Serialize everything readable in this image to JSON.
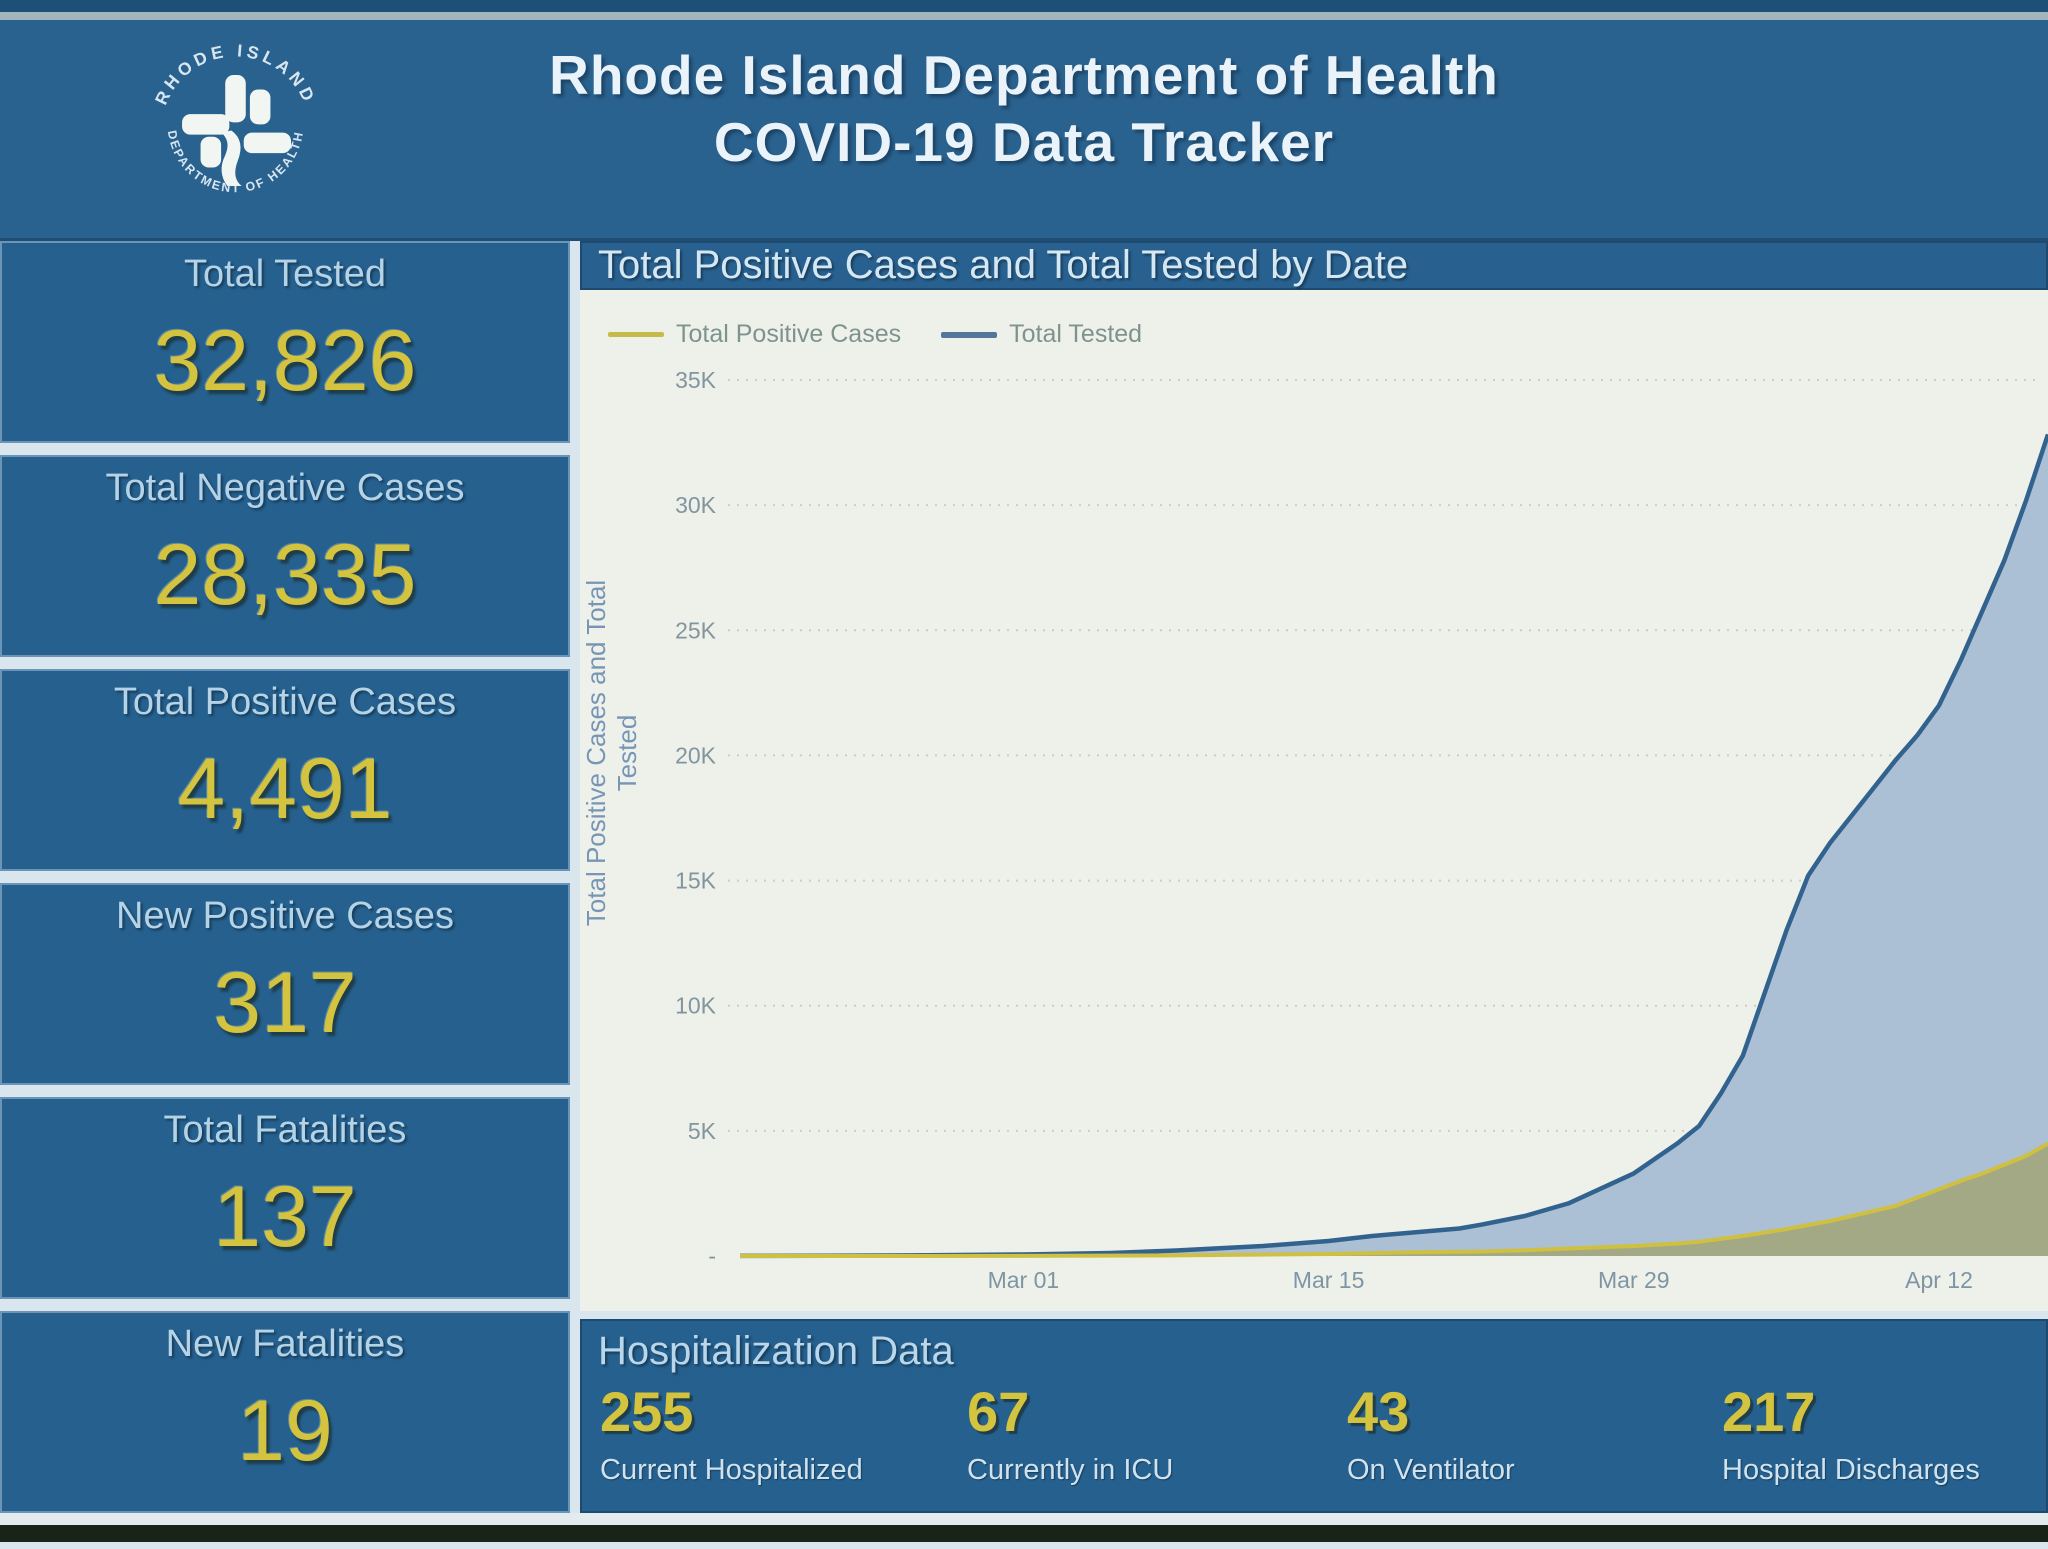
{
  "header": {
    "title_line1": "Rhode Island Department of Health",
    "title_line2": "COVID-19 Data Tracker",
    "logo": {
      "arc_top_text": "RHODE ISLAND",
      "arc_bottom_text": "DEPARTMENT OF HEALTH",
      "icon": "health-seal-icon"
    }
  },
  "stats": [
    {
      "label": "Total Tested",
      "value": "32,826"
    },
    {
      "label": "Total Negative Cases",
      "value": "28,335"
    },
    {
      "label": "Total Positive Cases",
      "value": "4,491"
    },
    {
      "label": "New Positive Cases",
      "value": "317"
    },
    {
      "label": "Total Fatalities",
      "value": "137"
    },
    {
      "label": "New Fatalities",
      "value": "19"
    }
  ],
  "chart_data": {
    "type": "line",
    "title": "Total Positive Cases and Total Tested by Date",
    "y_axis_title": "Total Positive Cases and Total Tested",
    "ylim": [
      0,
      35000
    ],
    "grid": "horizontal-dotted",
    "legend_position": "top-left",
    "y_ticks": [
      {
        "label": "35K",
        "value": 35000
      },
      {
        "label": "30K",
        "value": 30000
      },
      {
        "label": "25K",
        "value": 25000
      },
      {
        "label": "20K",
        "value": 20000
      },
      {
        "label": "15K",
        "value": 15000
      },
      {
        "label": "10K",
        "value": 10000
      },
      {
        "label": "5K",
        "value": 5000
      },
      {
        "label": "-",
        "value": 0
      }
    ],
    "x_range_days": [
      0,
      60
    ],
    "x_ticks": [
      {
        "label": "Mar 01",
        "day": 13
      },
      {
        "label": "Mar 15",
        "day": 27
      },
      {
        "label": "Mar 29",
        "day": 41
      },
      {
        "label": "Apr 12",
        "day": 55
      }
    ],
    "series": [
      {
        "name": "Total Positive Cases",
        "color": "#cfc041",
        "fill": "#a3a985",
        "points": [
          [
            0,
            0
          ],
          [
            8,
            0
          ],
          [
            13,
            5
          ],
          [
            20,
            25
          ],
          [
            27,
            80
          ],
          [
            31,
            150
          ],
          [
            34,
            180
          ],
          [
            36,
            230
          ],
          [
            38,
            300
          ],
          [
            41,
            400
          ],
          [
            43,
            500
          ],
          [
            44,
            570
          ],
          [
            46,
            800
          ],
          [
            48,
            1080
          ],
          [
            50,
            1400
          ],
          [
            51,
            1600
          ],
          [
            53,
            2000
          ],
          [
            55,
            2665
          ],
          [
            56,
            3000
          ],
          [
            57,
            3300
          ],
          [
            58,
            3650
          ],
          [
            59,
            4000
          ],
          [
            60,
            4491
          ]
        ]
      },
      {
        "name": "Total Tested",
        "color": "#32628e",
        "fill": "#abc0d4",
        "points": [
          [
            0,
            5
          ],
          [
            4,
            10
          ],
          [
            8,
            25
          ],
          [
            13,
            60
          ],
          [
            17,
            120
          ],
          [
            20,
            220
          ],
          [
            24,
            400
          ],
          [
            27,
            600
          ],
          [
            29,
            800
          ],
          [
            31,
            950
          ],
          [
            33,
            1100
          ],
          [
            34,
            1250
          ],
          [
            36,
            1600
          ],
          [
            38,
            2100
          ],
          [
            40,
            2900
          ],
          [
            41,
            3300
          ],
          [
            42,
            3900
          ],
          [
            43,
            4500
          ],
          [
            44,
            5200
          ],
          [
            45,
            6500
          ],
          [
            46,
            8000
          ],
          [
            47,
            10500
          ],
          [
            48,
            13000
          ],
          [
            49,
            15200
          ],
          [
            50,
            16500
          ],
          [
            51,
            17600
          ],
          [
            52,
            18700
          ],
          [
            53,
            19800
          ],
          [
            54,
            20800
          ],
          [
            55,
            22000
          ],
          [
            56,
            23800
          ],
          [
            57,
            25800
          ],
          [
            58,
            27800
          ],
          [
            59,
            30200
          ],
          [
            60,
            32826
          ]
        ]
      }
    ]
  },
  "hospitalization": {
    "title": "Hospitalization Data",
    "items": [
      {
        "value": "255",
        "label": "Current Hospitalized"
      },
      {
        "value": "67",
        "label": "Currently in ICU"
      },
      {
        "value": "43",
        "label": "On Ventilator"
      },
      {
        "value": "217",
        "label": "Hospital Discharges"
      }
    ]
  },
  "colors": {
    "header_blue": "#2a628f",
    "card_blue": "#25608e",
    "accent_yellow": "#d3c33e",
    "label_blue": "#b5d3e6",
    "chart_bg": "#eef0ea",
    "tested_line": "#32628e",
    "tested_fill": "#abc0d4",
    "positive_line": "#cfc041",
    "positive_fill": "#a3a985",
    "axis_text": "#82959e"
  }
}
